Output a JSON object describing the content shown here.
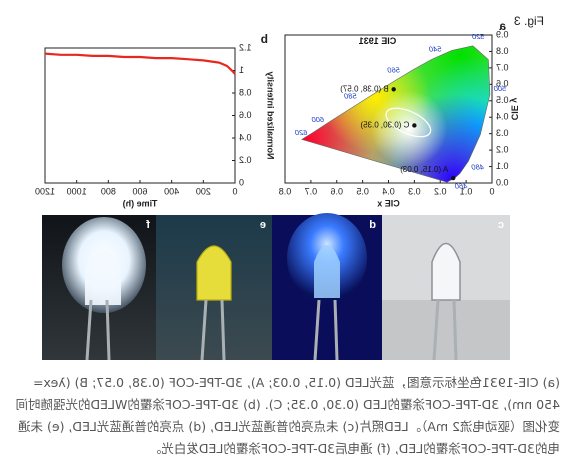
{
  "figure_label": "Fig. 3",
  "chart_data": [
    {
      "type": "scatter",
      "panel": "a",
      "annotation": "CIE 1931",
      "x_label": "CIE x",
      "y_label": "CIE y",
      "xlim": [
        0,
        0.8
      ],
      "xticks": [
        0,
        0.1,
        0.2,
        0.3,
        0.4,
        0.5,
        0.6,
        0.7,
        0.8
      ],
      "ylim": [
        0,
        0.9
      ],
      "yticks": [
        {
          "value": 0,
          "label": "0.0"
        },
        0.1,
        0.2,
        0.3,
        0.4,
        0.5,
        0.6,
        0.7,
        0.8,
        0.9
      ],
      "wavelength_labels": [
        460,
        480,
        500,
        520,
        540,
        560,
        580,
        600,
        620
      ],
      "points": [
        {
          "label": "A (0.15, 0.03)",
          "x": 0.15,
          "y": 0.03
        },
        {
          "label": "B (0.38, 0.57)",
          "x": 0.38,
          "y": 0.57
        },
        {
          "label": "C (0.30, 0.35)",
          "x": 0.3,
          "y": 0.35
        }
      ],
      "color": "#111111"
    },
    {
      "type": "line",
      "panel": "b",
      "x_label": "Time (h)",
      "y_label": "Normalized intensity",
      "xlim": [
        0,
        1200
      ],
      "xticks": [
        0,
        200,
        400,
        600,
        800,
        1000,
        1200
      ],
      "ylim": [
        0,
        1.2
      ],
      "yticks": [
        0,
        0.2,
        0.4,
        0.6,
        0.8,
        1.0,
        1.2
      ],
      "x": [
        0,
        20,
        50,
        100,
        200,
        300,
        400,
        500,
        600,
        700,
        800,
        900,
        1000,
        1100,
        1200
      ],
      "values": [
        0.97,
        1.0,
        1.04,
        1.07,
        1.09,
        1.1,
        1.11,
        1.11,
        1.12,
        1.12,
        1.13,
        1.13,
        1.14,
        1.14,
        1.15
      ],
      "color": "#e8281e"
    }
  ],
  "photos": [
    {
      "label": "c",
      "scene": "clear"
    },
    {
      "label": "d",
      "scene": "blue"
    },
    {
      "label": "e",
      "scene": "yellow"
    },
    {
      "label": "f",
      "scene": "white"
    }
  ],
  "caption": "(a) CIE-1931色坐标示意图，蓝光LED (0.15, 0.03; A), 3D-TPE-COF (0.38, 0.57; B) (λex= 450 nm), 3D-TPE-COF涂覆的LED (0.30, 0.35; C). (b) 3D-TPE-COF涂覆的WLED的光强随时间变化图（驱动电流2 mA）。LED照片(c) 未点亮的普通蓝光LED, (d) 点亮的普通蓝光LED, (e) 未通电的3D-TPE-COF涂覆的LED, (f) 通电后3D-TPE-COF涂覆的LED发白光。"
}
